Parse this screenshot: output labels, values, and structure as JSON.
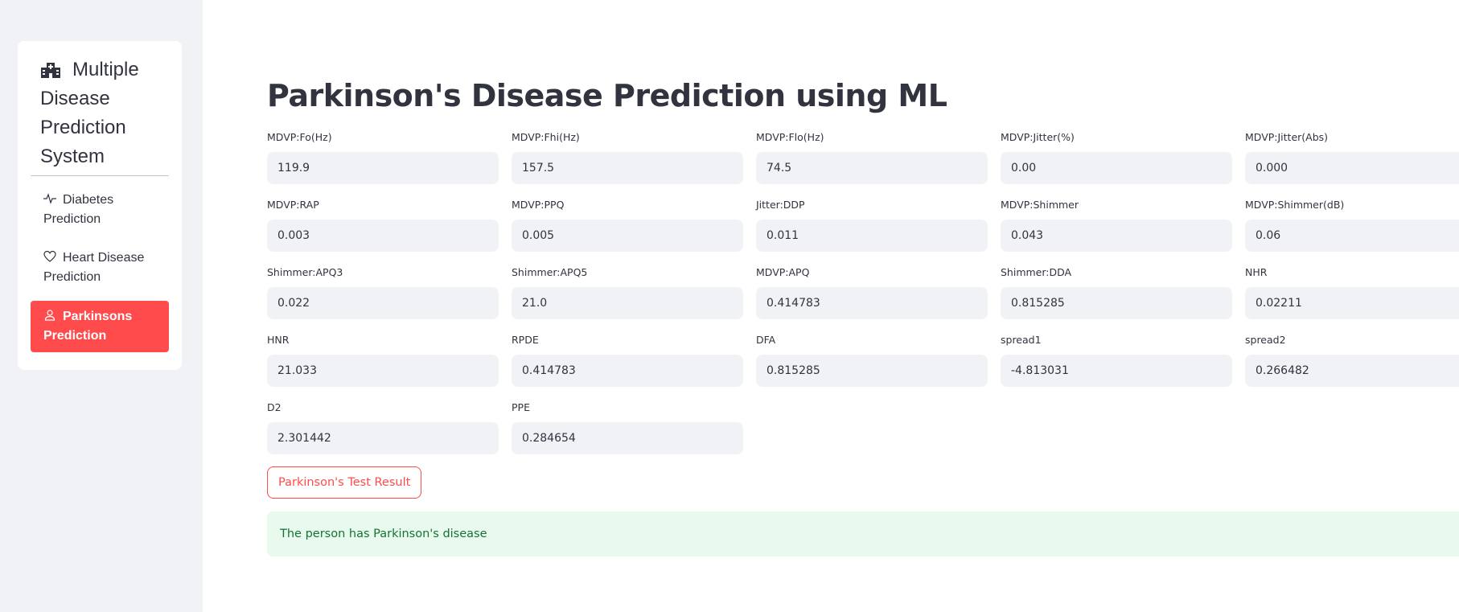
{
  "sidebar": {
    "menu_title": "Multiple Disease Prediction System",
    "title_icon": "hospital-icon",
    "items": [
      {
        "label": "Diabetes Prediction",
        "icon": "activity-icon",
        "active": false
      },
      {
        "label": "Heart Disease Prediction",
        "icon": "heart-icon",
        "active": false
      },
      {
        "label": "Parkinsons Prediction",
        "icon": "person-icon",
        "active": true
      }
    ],
    "active_color": "#ff4b4b"
  },
  "main": {
    "title": "Parkinson's Disease Prediction using ML",
    "fields": [
      {
        "label": "MDVP:Fo(Hz)",
        "value": "119.9"
      },
      {
        "label": "MDVP:Fhi(Hz)",
        "value": "157.5"
      },
      {
        "label": "MDVP:Flo(Hz)",
        "value": "74.5"
      },
      {
        "label": "MDVP:Jitter(%)",
        "value": "0.00"
      },
      {
        "label": "MDVP:Jitter(Abs)",
        "value": "0.000"
      },
      {
        "label": "MDVP:RAP",
        "value": "0.003"
      },
      {
        "label": "MDVP:PPQ",
        "value": "0.005"
      },
      {
        "label": "Jitter:DDP",
        "value": "0.011"
      },
      {
        "label": "MDVP:Shimmer",
        "value": "0.043"
      },
      {
        "label": "MDVP:Shimmer(dB)",
        "value": "0.06"
      },
      {
        "label": "Shimmer:APQ3",
        "value": "0.022"
      },
      {
        "label": "Shimmer:APQ5",
        "value": "21.0"
      },
      {
        "label": "MDVP:APQ",
        "value": "0.414783"
      },
      {
        "label": "Shimmer:DDA",
        "value": "0.815285"
      },
      {
        "label": "NHR",
        "value": "0.02211"
      },
      {
        "label": "HNR",
        "value": "21.033"
      },
      {
        "label": "RPDE",
        "value": "0.414783"
      },
      {
        "label": "DFA",
        "value": "0.815285"
      },
      {
        "label": "spread1",
        "value": "-4.813031"
      },
      {
        "label": "spread2",
        "value": "0.266482"
      },
      {
        "label": "D2",
        "value": "2.301442"
      },
      {
        "label": "PPE",
        "value": "0.284654"
      }
    ],
    "button_label": "Parkinson's Test Result",
    "result_text": "The person has Parkinson's disease",
    "colors": {
      "accent": "#ff4b4b",
      "success_bg": "#e8f9ee",
      "success_text": "#177233",
      "input_bg": "#f0f2f6"
    }
  }
}
